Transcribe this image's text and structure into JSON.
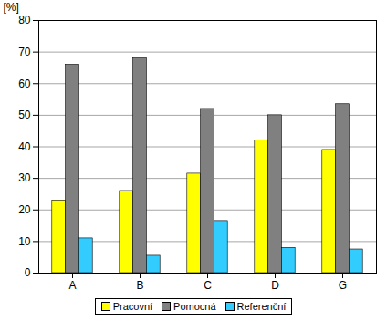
{
  "chart_data": {
    "type": "bar",
    "y_label": "[%]",
    "categories": [
      "A",
      "B",
      "C",
      "D",
      "G"
    ],
    "series": [
      {
        "name": "Pracovní",
        "color": "#ffff00",
        "values": [
          23,
          26,
          31.5,
          42,
          39
        ]
      },
      {
        "name": "Pomocná",
        "color": "#808080",
        "values": [
          66,
          68,
          52,
          50,
          53.5
        ]
      },
      {
        "name": "Referenční",
        "color": "#33ccff",
        "values": [
          11,
          5.5,
          16.5,
          8,
          7.5
        ]
      }
    ],
    "ylim": [
      0,
      80
    ],
    "yticks": [
      0,
      10,
      20,
      30,
      40,
      50,
      60,
      70,
      80
    ],
    "grid": true,
    "legend": "bottom"
  }
}
